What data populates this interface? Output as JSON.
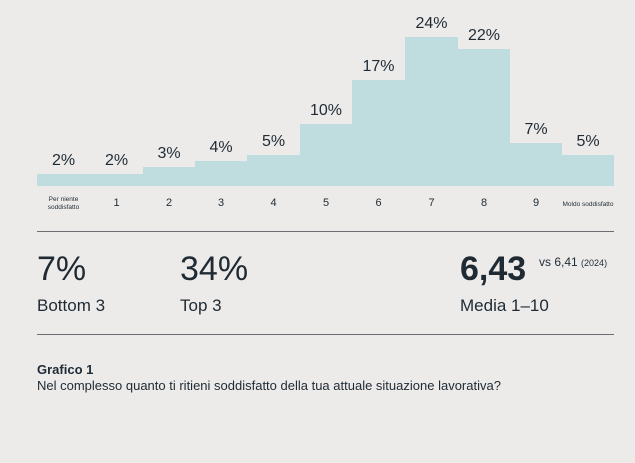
{
  "chart_data": {
    "type": "bar",
    "categories": [
      "Per niente soddisfatto",
      "1",
      "2",
      "3",
      "4",
      "5",
      "6",
      "7",
      "8",
      "9",
      "Moldo soddisfatto"
    ],
    "values": [
      2,
      2,
      3,
      4,
      5,
      10,
      17,
      24,
      22,
      7,
      5
    ],
    "value_labels": [
      "2%",
      "2%",
      "3%",
      "4%",
      "5%",
      "10%",
      "17%",
      "24%",
      "22%",
      "7%",
      "5%"
    ],
    "ylim": [
      0,
      24
    ],
    "grid": false,
    "bar_color": "#bfdcde"
  },
  "stats": {
    "bottom": {
      "value": "7%",
      "label": "Bottom 3"
    },
    "top": {
      "value": "34%",
      "label": "Top 3"
    },
    "media": {
      "value": "6,43",
      "label": "Media 1–10",
      "vs_text": "vs 6,41",
      "vs_year": "(2024)"
    }
  },
  "caption": {
    "title": "Grafico 1",
    "question": "Nel complesso quanto ti ritieni soddisfatto della tua attuale situazione lavorativa?"
  },
  "colors": {
    "background": "#ecebea",
    "bar": "#bfdcde",
    "text": "#1f2a33"
  }
}
